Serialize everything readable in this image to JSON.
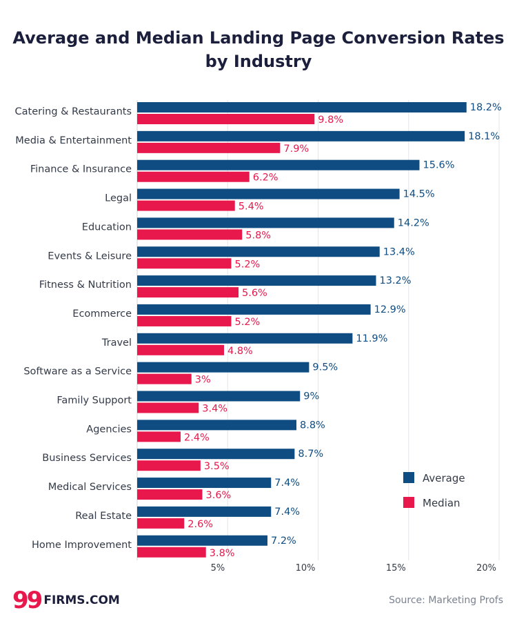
{
  "chart_data": {
    "type": "bar",
    "orientation": "horizontal",
    "title": "Average and Median Landing Page Conversion Rates by Industry",
    "categories": [
      "Catering & Restaurants",
      "Media & Entertainment",
      "Finance & Insurance",
      "Legal",
      "Education",
      "Events & Leisure",
      "Fitness & Nutrition",
      "Ecommerce",
      "Travel",
      "Software as a Service",
      "Family Support",
      "Agencies",
      "Business Services",
      "Medical Services",
      "Real Estate",
      "Home Improvement"
    ],
    "series": [
      {
        "name": "Average",
        "color": "#0e4c82",
        "values": [
          18.2,
          18.1,
          15.6,
          14.5,
          14.2,
          13.4,
          13.2,
          12.9,
          11.9,
          9.5,
          9,
          8.8,
          8.7,
          7.4,
          7.4,
          7.2
        ],
        "labels": [
          "18.2%",
          "18.1%",
          "15.6%",
          "14.5%",
          "14.2%",
          "13.4%",
          "13.2%",
          "12.9%",
          "11.9%",
          "9.5%",
          "9%",
          "8.8%",
          "8.7%",
          "7.4%",
          "7.4%",
          "7.2%"
        ]
      },
      {
        "name": "Median",
        "color": "#e8184c",
        "values": [
          9.8,
          7.9,
          6.2,
          5.4,
          5.8,
          5.2,
          5.6,
          5.2,
          4.8,
          3,
          3.4,
          2.4,
          3.5,
          3.6,
          2.6,
          3.8
        ],
        "labels": [
          "9.8%",
          "7.9%",
          "6.2%",
          "5.4%",
          "5.8%",
          "5.2%",
          "5.6%",
          "5.2%",
          "4.8%",
          "3%",
          "3.4%",
          "2.4%",
          "3.5%",
          "3.6%",
          "2.6%",
          "3.8%"
        ]
      }
    ],
    "xlim": [
      0,
      20
    ],
    "xticks": [
      5,
      10,
      15,
      20
    ],
    "xtick_labels": [
      "5%",
      "10%",
      "15%",
      "20%"
    ],
    "xlabel": "",
    "ylabel": "",
    "grid": true,
    "legend_position": "bottom-right"
  },
  "branding": {
    "logo_mark": "99",
    "logo_text": "FIRMS.COM"
  },
  "source_note": "Source: Marketing Profs"
}
